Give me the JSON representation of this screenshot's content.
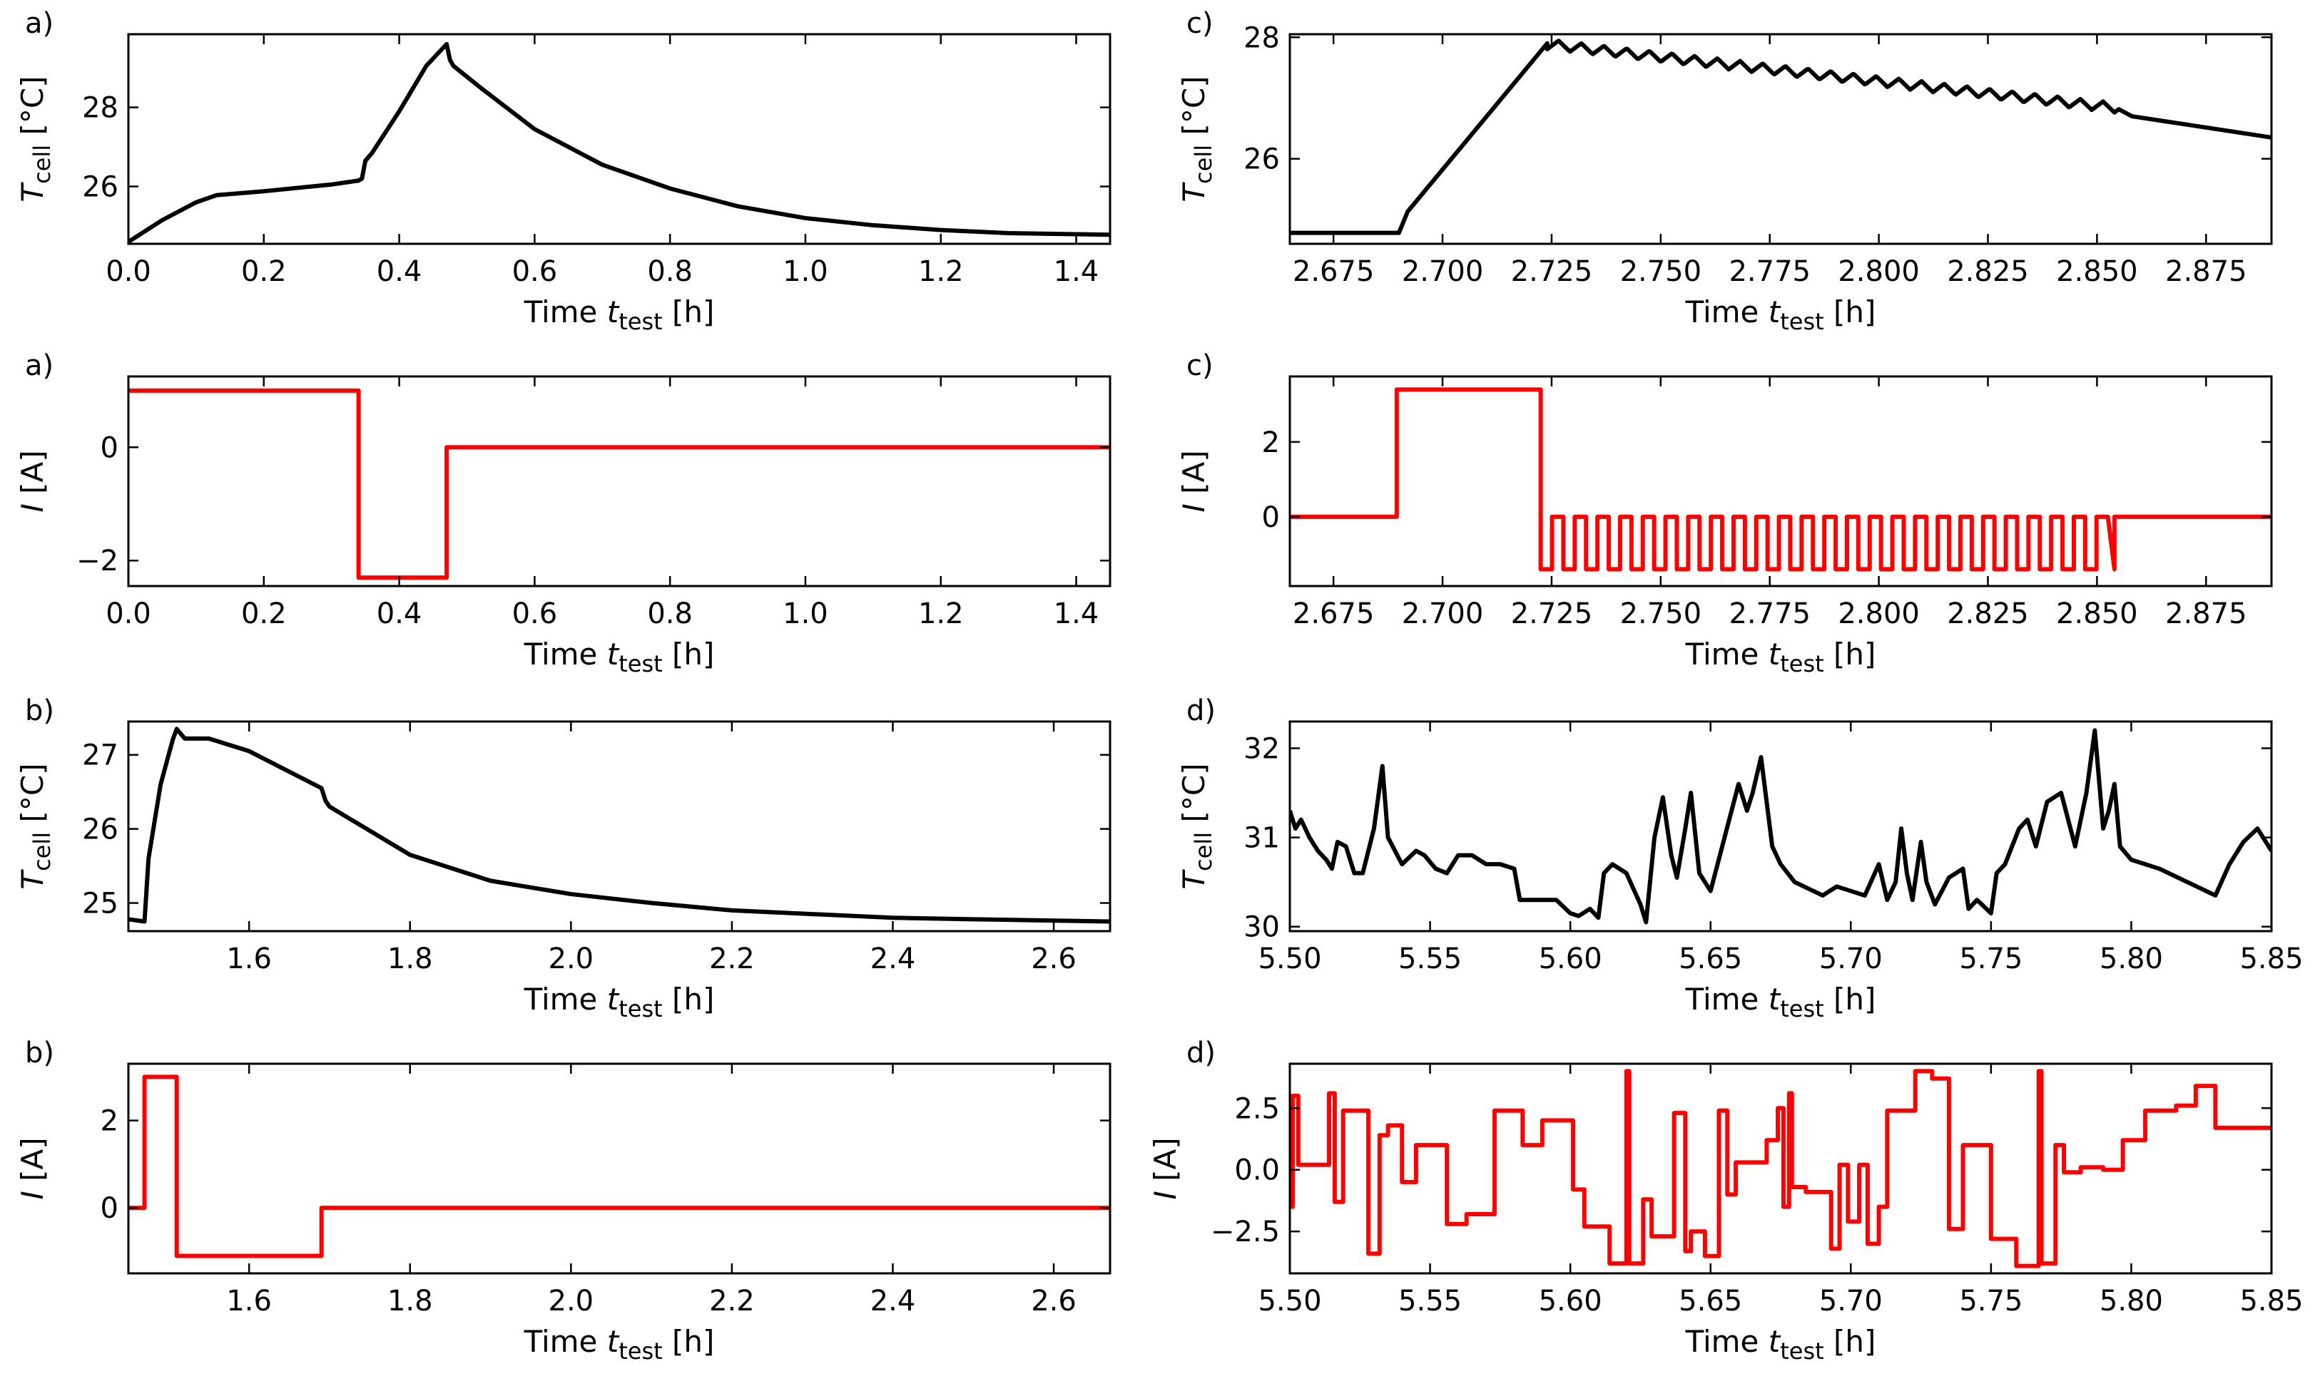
{
  "chart_data": [
    {
      "id": "a-temp",
      "type": "line",
      "panel_label": "a)",
      "ylabel_main": "T",
      "ylabel_sub": "cell",
      "ylabel_unit": " [°C]",
      "xlabel_main": "Time ",
      "xlabel_var": "t",
      "xlabel_sub": "test",
      "xlabel_unit": " [h]",
      "xlim": [
        0.0,
        1.45
      ],
      "ylim": [
        24.55,
        29.85
      ],
      "xticks": [
        0.0,
        0.2,
        0.4,
        0.6,
        0.8,
        1.0,
        1.2,
        1.4
      ],
      "xtick_labels": [
        "0.0",
        "0.2",
        "0.4",
        "0.6",
        "0.8",
        "1.0",
        "1.2",
        "1.4"
      ],
      "yticks": [
        26,
        28
      ],
      "ytick_labels": [
        "26",
        "28"
      ],
      "color": "#000000",
      "series": [
        {
          "name": "T_cell",
          "x": [
            0.0,
            0.05,
            0.1,
            0.13,
            0.2,
            0.3,
            0.34,
            0.345,
            0.35,
            0.36,
            0.4,
            0.44,
            0.47,
            0.475,
            0.48,
            0.52,
            0.6,
            0.7,
            0.8,
            0.9,
            1.0,
            1.1,
            1.2,
            1.3,
            1.45
          ],
          "y": [
            24.6,
            25.15,
            25.6,
            25.78,
            25.88,
            26.05,
            26.15,
            26.2,
            26.65,
            26.85,
            27.9,
            29.05,
            29.6,
            29.2,
            29.05,
            28.5,
            27.45,
            26.55,
            25.95,
            25.5,
            25.2,
            25.02,
            24.9,
            24.82,
            24.78
          ]
        }
      ]
    },
    {
      "id": "a-current",
      "type": "line",
      "panel_label": "a)",
      "ylabel_main": "I",
      "ylabel_sub": "",
      "ylabel_unit": " [A]",
      "xlabel_main": "Time ",
      "xlabel_var": "t",
      "xlabel_sub": "test",
      "xlabel_unit": " [h]",
      "xlim": [
        0.0,
        1.45
      ],
      "ylim": [
        -2.45,
        1.25
      ],
      "xticks": [
        0.0,
        0.2,
        0.4,
        0.6,
        0.8,
        1.0,
        1.2,
        1.4
      ],
      "xtick_labels": [
        "0.0",
        "0.2",
        "0.4",
        "0.6",
        "0.8",
        "1.0",
        "1.2",
        "1.4"
      ],
      "yticks": [
        -2,
        0
      ],
      "ytick_labels": [
        "−2",
        "0"
      ],
      "color": "#ff0000",
      "series": [
        {
          "name": "I",
          "x": [
            0.0,
            0.34,
            0.34,
            0.47,
            0.47,
            1.45
          ],
          "y": [
            1.0,
            1.0,
            -2.3,
            -2.3,
            0.0,
            0.0
          ]
        }
      ]
    },
    {
      "id": "b-temp",
      "type": "line",
      "panel_label": "b)",
      "ylabel_main": "T",
      "ylabel_sub": "cell",
      "ylabel_unit": " [°C]",
      "xlabel_main": "Time ",
      "xlabel_var": "t",
      "xlabel_sub": "test",
      "xlabel_unit": " [h]",
      "xlim": [
        1.45,
        2.67
      ],
      "ylim": [
        24.62,
        27.45
      ],
      "xticks": [
        1.6,
        1.8,
        2.0,
        2.2,
        2.4,
        2.6
      ],
      "xtick_labels": [
        "1.6",
        "1.8",
        "2.0",
        "2.2",
        "2.4",
        "2.6"
      ],
      "yticks": [
        25,
        26,
        27
      ],
      "ytick_labels": [
        "25",
        "26",
        "27"
      ],
      "color": "#000000",
      "series": [
        {
          "name": "T_cell",
          "x": [
            1.45,
            1.47,
            1.475,
            1.49,
            1.505,
            1.51,
            1.52,
            1.55,
            1.6,
            1.69,
            1.695,
            1.7,
            1.8,
            1.9,
            2.0,
            2.1,
            2.2,
            2.3,
            2.4,
            2.5,
            2.67
          ],
          "y": [
            24.78,
            24.75,
            25.6,
            26.6,
            27.2,
            27.35,
            27.22,
            27.22,
            27.05,
            26.55,
            26.38,
            26.3,
            25.65,
            25.3,
            25.12,
            25.0,
            24.9,
            24.85,
            24.8,
            24.78,
            24.75
          ]
        }
      ]
    },
    {
      "id": "b-current",
      "type": "line",
      "panel_label": "b)",
      "ylabel_main": "I",
      "ylabel_sub": "",
      "ylabel_unit": " [A]",
      "xlabel_main": "Time ",
      "xlabel_var": "t",
      "xlabel_sub": "test",
      "xlabel_unit": " [h]",
      "xlim": [
        1.45,
        2.67
      ],
      "ylim": [
        -1.5,
        3.3
      ],
      "xticks": [
        1.6,
        1.8,
        2.0,
        2.2,
        2.4,
        2.6
      ],
      "xtick_labels": [
        "1.6",
        "1.8",
        "2.0",
        "2.2",
        "2.4",
        "2.6"
      ],
      "yticks": [
        0,
        2
      ],
      "ytick_labels": [
        "0",
        "2"
      ],
      "color": "#ff0000",
      "series": [
        {
          "name": "I",
          "x": [
            1.45,
            1.47,
            1.47,
            1.51,
            1.51,
            1.69,
            1.69,
            2.67
          ],
          "y": [
            0.0,
            0.0,
            3.0,
            3.0,
            -1.1,
            -1.1,
            0.0,
            0.0
          ]
        }
      ]
    },
    {
      "id": "c-temp",
      "type": "line",
      "panel_label": "c)",
      "ylabel_main": "T",
      "ylabel_sub": "cell",
      "ylabel_unit": " [°C]",
      "xlabel_main": "Time ",
      "xlabel_var": "t",
      "xlabel_sub": "test",
      "xlabel_unit": " [h]",
      "xlim": [
        2.665,
        2.89
      ],
      "ylim": [
        24.6,
        28.05
      ],
      "xticks": [
        2.675,
        2.7,
        2.725,
        2.75,
        2.775,
        2.8,
        2.825,
        2.85,
        2.875
      ],
      "xtick_labels": [
        "2.675",
        "2.700",
        "2.725",
        "2.750",
        "2.775",
        "2.800",
        "2.825",
        "2.850",
        "2.875"
      ],
      "yticks": [
        26,
        28
      ],
      "ytick_labels": [
        "26",
        "28"
      ],
      "color": "#000000",
      "generator": {
        "kind": "c_temp",
        "flat": 24.78,
        "rise_start": 2.69,
        "rise_end": 2.724,
        "peak": 27.9,
        "osc_end": 2.855,
        "osc_end_level": 26.85,
        "osc_period": 0.0052,
        "osc_amp": 0.16,
        "end_level": 26.35
      },
      "series": [
        {
          "name": "T_cell"
        }
      ]
    },
    {
      "id": "c-current",
      "type": "line",
      "panel_label": "c)",
      "ylabel_main": "I",
      "ylabel_sub": "",
      "ylabel_unit": " [A]",
      "xlabel_main": "Time ",
      "xlabel_var": "t",
      "xlabel_sub": "test",
      "xlabel_unit": " [h]",
      "xlim": [
        2.665,
        2.89
      ],
      "ylim": [
        -1.85,
        3.75
      ],
      "xticks": [
        2.675,
        2.7,
        2.725,
        2.75,
        2.775,
        2.8,
        2.825,
        2.85,
        2.875
      ],
      "xtick_labels": [
        "2.675",
        "2.700",
        "2.725",
        "2.750",
        "2.775",
        "2.800",
        "2.825",
        "2.850",
        "2.875"
      ],
      "yticks": [
        0,
        2
      ],
      "ytick_labels": [
        "0",
        "2"
      ],
      "color": "#ff0000",
      "generator": {
        "kind": "c_current",
        "pre": 0.0,
        "charge_start": 2.6895,
        "charge_end": 2.7225,
        "charge": 3.4,
        "pulse_low": -1.4,
        "pulse_high": 0.0,
        "pulse_period": 0.0052,
        "pulse_start": 2.7225,
        "pulse_end": 2.854
      },
      "series": [
        {
          "name": "I"
        }
      ]
    },
    {
      "id": "d-temp",
      "type": "line",
      "panel_label": "d)",
      "ylabel_main": "T",
      "ylabel_sub": "cell",
      "ylabel_unit": " [°C]",
      "xlabel_main": "Time ",
      "xlabel_var": "t",
      "xlabel_sub": "test",
      "xlabel_unit": " [h]",
      "xlim": [
        5.5,
        5.85
      ],
      "ylim": [
        29.95,
        32.3
      ],
      "xticks": [
        5.5,
        5.55,
        5.6,
        5.65,
        5.7,
        5.75,
        5.8,
        5.85
      ],
      "xtick_labels": [
        "5.50",
        "5.55",
        "5.60",
        "5.65",
        "5.70",
        "5.75",
        "5.80",
        "5.85"
      ],
      "yticks": [
        30,
        31,
        32
      ],
      "ytick_labels": [
        "30",
        "31",
        "32"
      ],
      "color": "#000000",
      "series": [
        {
          "name": "T_cell",
          "x": [
            5.5,
            5.502,
            5.504,
            5.507,
            5.51,
            5.513,
            5.515,
            5.517,
            5.52,
            5.523,
            5.526,
            5.53,
            5.533,
            5.535,
            5.54,
            5.545,
            5.548,
            5.552,
            5.556,
            5.56,
            5.565,
            5.57,
            5.575,
            5.58,
            5.582,
            5.59,
            5.595,
            5.6,
            5.603,
            5.607,
            5.61,
            5.612,
            5.615,
            5.62,
            5.625,
            5.627,
            5.63,
            5.633,
            5.636,
            5.638,
            5.641,
            5.643,
            5.646,
            5.65,
            5.655,
            5.66,
            5.663,
            5.665,
            5.668,
            5.672,
            5.675,
            5.68,
            5.69,
            5.695,
            5.7,
            5.705,
            5.71,
            5.713,
            5.716,
            5.718,
            5.72,
            5.722,
            5.725,
            5.727,
            5.73,
            5.735,
            5.74,
            5.742,
            5.745,
            5.75,
            5.752,
            5.755,
            5.76,
            5.763,
            5.766,
            5.77,
            5.775,
            5.78,
            5.784,
            5.787,
            5.79,
            5.792,
            5.794,
            5.796,
            5.8,
            5.81,
            5.82,
            5.83,
            5.835,
            5.84,
            5.845,
            5.85
          ],
          "y": [
            31.3,
            31.1,
            31.2,
            31.0,
            30.85,
            30.75,
            30.65,
            30.95,
            30.9,
            30.6,
            30.6,
            31.1,
            31.8,
            31.0,
            30.7,
            30.85,
            30.8,
            30.65,
            30.6,
            30.8,
            30.8,
            30.7,
            30.7,
            30.65,
            30.3,
            30.3,
            30.3,
            30.15,
            30.12,
            30.2,
            30.1,
            30.6,
            30.7,
            30.6,
            30.25,
            30.05,
            31.0,
            31.45,
            30.8,
            30.55,
            31.1,
            31.5,
            30.6,
            30.4,
            31.0,
            31.6,
            31.3,
            31.5,
            31.9,
            30.9,
            30.7,
            30.5,
            30.35,
            30.45,
            30.4,
            30.35,
            30.7,
            30.3,
            30.5,
            31.1,
            30.6,
            30.3,
            30.95,
            30.5,
            30.25,
            30.55,
            30.65,
            30.2,
            30.3,
            30.15,
            30.6,
            30.7,
            31.1,
            31.2,
            30.9,
            31.4,
            31.5,
            30.9,
            31.5,
            32.2,
            31.1,
            31.3,
            31.6,
            30.9,
            30.75,
            30.65,
            30.5,
            30.35,
            30.7,
            30.95,
            31.1,
            30.85
          ]
        }
      ]
    },
    {
      "id": "d-current",
      "type": "line",
      "panel_label": "d)",
      "ylabel_main": "I",
      "ylabel_sub": "",
      "ylabel_unit": " [A]",
      "xlabel_main": "Time ",
      "xlabel_var": "t",
      "xlabel_sub": "test",
      "xlabel_unit": " [h]",
      "xlim": [
        5.5,
        5.85
      ],
      "ylim": [
        -4.2,
        4.3
      ],
      "xticks": [
        5.5,
        5.55,
        5.6,
        5.65,
        5.7,
        5.75,
        5.8,
        5.85
      ],
      "xtick_labels": [
        "5.50",
        "5.55",
        "5.60",
        "5.65",
        "5.70",
        "5.75",
        "5.80",
        "5.85"
      ],
      "yticks": [
        -2.5,
        0.0,
        2.5
      ],
      "ytick_labels": [
        "−2.5",
        "0.0",
        "2.5"
      ],
      "color": "#ff0000",
      "series": [
        {
          "name": "I",
          "steps": [
            [
              5.5,
              -1.5
            ],
            [
              5.501,
              3.0
            ],
            [
              5.503,
              0.2
            ],
            [
              5.514,
              3.1
            ],
            [
              5.516,
              -1.3
            ],
            [
              5.519,
              2.4
            ],
            [
              5.528,
              -3.4
            ],
            [
              5.532,
              1.4
            ],
            [
              5.535,
              1.8
            ],
            [
              5.54,
              -0.5
            ],
            [
              5.545,
              1.0
            ],
            [
              5.556,
              -2.2
            ],
            [
              5.563,
              -1.8
            ],
            [
              5.573,
              2.4
            ],
            [
              5.583,
              1.0
            ],
            [
              5.59,
              2.0
            ],
            [
              5.601,
              -0.8
            ],
            [
              5.605,
              -2.3
            ],
            [
              5.614,
              -3.8
            ],
            [
              5.62,
              4.0
            ],
            [
              5.621,
              -3.8
            ],
            [
              5.626,
              -1.2
            ],
            [
              5.629,
              -2.7
            ],
            [
              5.637,
              2.3
            ],
            [
              5.641,
              -3.3
            ],
            [
              5.643,
              -2.5
            ],
            [
              5.648,
              -3.5
            ],
            [
              5.653,
              2.4
            ],
            [
              5.656,
              -1.0
            ],
            [
              5.659,
              0.3
            ],
            [
              5.67,
              1.2
            ],
            [
              5.674,
              2.5
            ],
            [
              5.676,
              -1.5
            ],
            [
              5.678,
              3.1
            ],
            [
              5.679,
              -0.7
            ],
            [
              5.684,
              -0.9
            ],
            [
              5.689,
              -0.9
            ],
            [
              5.693,
              -3.2
            ],
            [
              5.696,
              0.2
            ],
            [
              5.699,
              -2.1
            ],
            [
              5.703,
              0.2
            ],
            [
              5.706,
              -3.0
            ],
            [
              5.71,
              -1.5
            ],
            [
              5.713,
              2.4
            ],
            [
              5.723,
              4.0
            ],
            [
              5.729,
              3.7
            ],
            [
              5.735,
              -2.4
            ],
            [
              5.74,
              1.0
            ],
            [
              5.742,
              1.0
            ],
            [
              5.75,
              -2.8
            ],
            [
              5.754,
              -2.8
            ],
            [
              5.759,
              -3.9
            ],
            [
              5.767,
              4.0
            ],
            [
              5.768,
              -3.8
            ],
            [
              5.773,
              1.0
            ],
            [
              5.776,
              -0.1
            ],
            [
              5.782,
              0.1
            ],
            [
              5.79,
              0.0
            ],
            [
              5.797,
              1.2
            ],
            [
              5.805,
              2.4
            ],
            [
              5.816,
              2.6
            ],
            [
              5.823,
              3.4
            ],
            [
              5.83,
              1.7
            ],
            [
              5.85,
              1.7
            ]
          ]
        }
      ]
    }
  ]
}
